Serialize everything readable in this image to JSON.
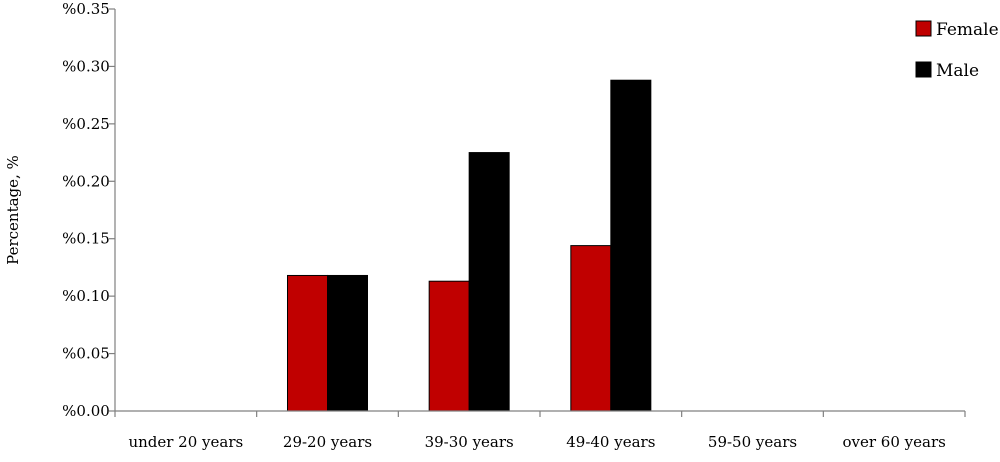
{
  "chart_data": {
    "type": "bar",
    "ylabel": "Percentage, %",
    "xlabel": "",
    "title": "",
    "categories": [
      "under 20 years",
      "29-20 years",
      "39-30 years",
      "49-40 years",
      "59-50 years",
      "over 60 years"
    ],
    "y_ticks": [
      "%0.00",
      "%0.05",
      "%0.10",
      "%0.15",
      "%0.20",
      "%0.25",
      "%0.30",
      "%0.35"
    ],
    "ylim": [
      0,
      0.35
    ],
    "grid": false,
    "legend_position": "top-right",
    "series": [
      {
        "name": "Female",
        "color": "#c00000",
        "values": [
          0,
          0.118,
          0.113,
          0.144,
          0,
          0
        ]
      },
      {
        "name": "Male",
        "color": "#000000",
        "values": [
          0,
          0.118,
          0.225,
          0.288,
          0,
          0
        ]
      }
    ]
  }
}
